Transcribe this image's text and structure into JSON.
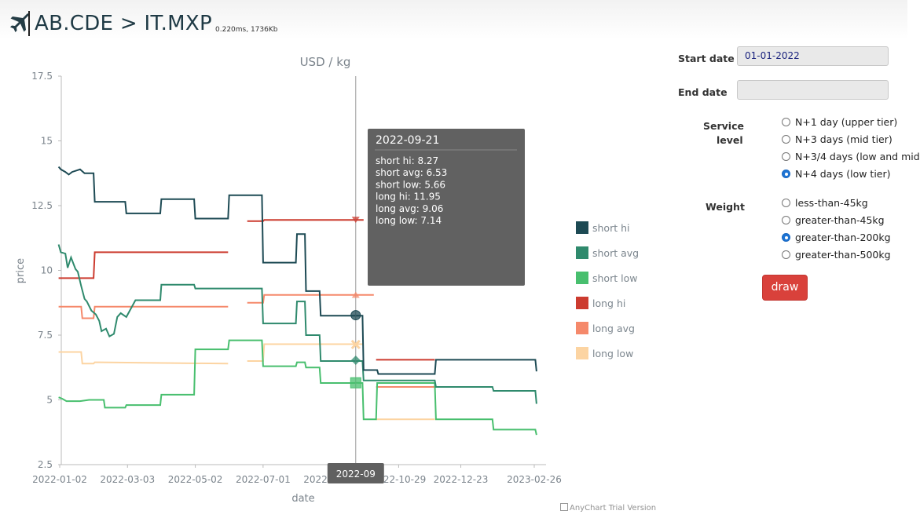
{
  "header": {
    "route": "AB.CDE > IT.MXP",
    "perf": "0.220ms, 1736Kb",
    "logo_icon": "airplane-icon"
  },
  "chart_data": {
    "type": "line",
    "title": "USD / kg",
    "xlabel": "date",
    "ylabel": "price",
    "ylim": [
      2.5,
      17.5
    ],
    "yticks": [
      "17.5",
      "15",
      "12.5",
      "10",
      "7.5",
      "5",
      "2.5"
    ],
    "xlim": [
      "2022-01-02",
      "2023-02-26"
    ],
    "xticks": [
      "2022-01-02",
      "2022-03-03",
      "2022-05-02",
      "2022-07-01",
      "2022-08-30",
      "2022-10-29",
      "2022-12-23",
      "2023-02-26"
    ],
    "grid": false,
    "legend": "right",
    "series": [
      {
        "name": "short hi",
        "color": "#1d4a54",
        "points": [
          [
            "2022-01-01",
            14.0
          ],
          [
            "2022-01-03",
            13.9
          ],
          [
            "2022-01-07",
            13.8
          ],
          [
            "2022-01-10",
            13.7
          ],
          [
            "2022-01-13",
            13.8
          ],
          [
            "2022-01-20",
            13.9
          ],
          [
            "2022-01-24",
            13.75
          ],
          [
            "2022-02-01",
            13.75
          ],
          [
            "2022-02-02",
            12.65
          ],
          [
            "2022-03-01",
            12.65
          ],
          [
            "2022-03-02",
            12.2
          ],
          [
            "2022-04-01",
            12.2
          ],
          [
            "2022-04-02",
            12.75
          ],
          [
            "2022-05-01",
            12.75
          ],
          [
            "2022-05-02",
            12.0
          ],
          [
            "2022-05-31",
            12.0
          ],
          [
            "2022-06-01",
            12.9
          ],
          [
            "2022-06-30",
            12.9
          ],
          [
            "2022-07-01",
            10.3
          ],
          [
            "2022-07-30",
            10.3
          ],
          [
            "2022-07-31",
            11.4
          ],
          [
            "2022-08-07",
            11.4
          ],
          [
            "2022-08-08",
            9.2
          ],
          [
            "2022-08-20",
            9.2
          ],
          [
            "2022-08-21",
            8.25
          ],
          [
            "2022-09-27",
            8.25
          ],
          [
            "2022-09-28",
            6.15
          ],
          [
            "2022-10-10",
            6.15
          ],
          [
            "2022-10-11",
            6.0
          ],
          [
            "2022-11-30",
            6.0
          ],
          [
            "2022-12-01",
            6.55
          ],
          [
            "2023-02-27",
            6.55
          ],
          [
            "2023-02-28",
            6.1
          ]
        ]
      },
      {
        "name": "short avg",
        "color": "#2f8a6d",
        "points": [
          [
            "2022-01-01",
            11.0
          ],
          [
            "2022-01-03",
            10.7
          ],
          [
            "2022-01-07",
            10.65
          ],
          [
            "2022-01-09",
            10.1
          ],
          [
            "2022-01-12",
            10.5
          ],
          [
            "2022-01-16",
            10.05
          ],
          [
            "2022-01-18",
            9.95
          ],
          [
            "2022-01-21",
            9.4
          ],
          [
            "2022-01-24",
            8.9
          ],
          [
            "2022-01-26",
            8.8
          ],
          [
            "2022-01-30",
            8.45
          ],
          [
            "2022-02-03",
            8.3
          ],
          [
            "2022-02-06",
            8.05
          ],
          [
            "2022-02-08",
            7.65
          ],
          [
            "2022-02-12",
            7.75
          ],
          [
            "2022-02-15",
            7.45
          ],
          [
            "2022-02-19",
            7.55
          ],
          [
            "2022-02-22",
            8.2
          ],
          [
            "2022-02-25",
            8.35
          ],
          [
            "2022-03-02",
            8.2
          ],
          [
            "2022-03-10",
            8.85
          ],
          [
            "2022-04-01",
            8.85
          ],
          [
            "2022-04-02",
            9.45
          ],
          [
            "2022-05-01",
            9.45
          ],
          [
            "2022-05-02",
            9.3
          ],
          [
            "2022-06-30",
            9.3
          ],
          [
            "2022-07-01",
            7.95
          ],
          [
            "2022-07-30",
            7.95
          ],
          [
            "2022-07-31",
            8.8
          ],
          [
            "2022-08-07",
            8.8
          ],
          [
            "2022-08-08",
            7.5
          ],
          [
            "2022-08-20",
            7.5
          ],
          [
            "2022-08-21",
            6.5
          ],
          [
            "2022-09-27",
            6.5
          ],
          [
            "2022-09-28",
            5.75
          ],
          [
            "2022-11-30",
            5.75
          ],
          [
            "2022-12-01",
            5.5
          ],
          [
            "2023-01-20",
            5.5
          ],
          [
            "2023-01-21",
            5.35
          ],
          [
            "2023-02-27",
            5.35
          ],
          [
            "2023-02-28",
            4.85
          ]
        ]
      },
      {
        "name": "short low",
        "color": "#48bf6e",
        "points": [
          [
            "2022-01-01",
            5.1
          ],
          [
            "2022-01-04",
            5.05
          ],
          [
            "2022-01-08",
            4.95
          ],
          [
            "2022-01-20",
            4.95
          ],
          [
            "2022-01-28",
            5.0
          ],
          [
            "2022-02-10",
            5.0
          ],
          [
            "2022-02-11",
            4.7
          ],
          [
            "2022-03-01",
            4.7
          ],
          [
            "2022-03-02",
            4.8
          ],
          [
            "2022-04-01",
            4.8
          ],
          [
            "2022-04-02",
            5.2
          ],
          [
            "2022-05-01",
            5.2
          ],
          [
            "2022-05-02",
            6.95
          ],
          [
            "2022-05-31",
            6.95
          ],
          [
            "2022-06-01",
            7.3
          ],
          [
            "2022-06-30",
            7.3
          ],
          [
            "2022-07-01",
            6.3
          ],
          [
            "2022-07-30",
            6.3
          ],
          [
            "2022-07-31",
            6.45
          ],
          [
            "2022-08-07",
            6.45
          ],
          [
            "2022-08-08",
            6.25
          ],
          [
            "2022-08-20",
            6.25
          ],
          [
            "2022-08-21",
            5.65
          ],
          [
            "2022-09-20",
            5.65
          ],
          [
            "2022-09-21",
            5.66
          ],
          [
            "2022-09-27",
            5.65
          ],
          [
            "2022-09-28",
            4.25
          ],
          [
            "2022-10-09",
            4.25
          ],
          [
            "2022-10-10",
            5.65
          ],
          [
            "2022-11-30",
            5.65
          ],
          [
            "2022-12-01",
            4.25
          ],
          [
            "2023-01-20",
            4.25
          ],
          [
            "2023-01-21",
            3.85
          ],
          [
            "2023-02-27",
            3.85
          ],
          [
            "2023-02-28",
            3.65
          ]
        ]
      },
      {
        "name": "long hi",
        "color": "#cc3b2f",
        "points": [
          [
            "2022-01-01",
            9.7
          ],
          [
            "2022-02-01",
            9.7
          ],
          [
            "2022-02-02",
            10.7
          ],
          [
            "2022-05-31",
            10.7
          ],
          null,
          [
            "2022-06-17",
            11.9
          ],
          [
            "2022-07-01",
            11.9
          ],
          [
            "2022-07-02",
            11.95
          ],
          [
            "2022-09-28",
            11.95
          ],
          null,
          [
            "2022-10-09",
            6.55
          ],
          [
            "2022-11-30",
            6.55
          ]
        ]
      },
      {
        "name": "long avg",
        "color": "#f5896b",
        "points": [
          [
            "2022-01-01",
            8.6
          ],
          [
            "2022-01-21",
            8.6
          ],
          [
            "2022-01-22",
            8.15
          ],
          [
            "2022-02-01",
            8.15
          ],
          [
            "2022-02-02",
            8.6
          ],
          [
            "2022-05-31",
            8.6
          ],
          null,
          [
            "2022-06-17",
            8.75
          ],
          [
            "2022-07-01",
            8.75
          ],
          [
            "2022-07-02",
            9.05
          ],
          [
            "2022-10-07",
            9.05
          ],
          null,
          [
            "2022-10-09",
            5.5
          ],
          [
            "2022-11-30",
            5.5
          ]
        ]
      },
      {
        "name": "long low",
        "color": "#fcd4a2",
        "points": [
          [
            "2022-01-01",
            6.85
          ],
          [
            "2022-01-21",
            6.85
          ],
          [
            "2022-01-22",
            6.4
          ],
          [
            "2022-02-01",
            6.4
          ],
          [
            "2022-02-02",
            6.45
          ],
          [
            "2022-05-31",
            6.4
          ],
          null,
          [
            "2022-06-17",
            6.5
          ],
          [
            "2022-07-01",
            6.5
          ],
          [
            "2022-07-02",
            7.15
          ],
          [
            "2022-09-27",
            7.15
          ],
          null,
          [
            "2022-10-09",
            4.25
          ],
          [
            "2022-11-30",
            4.25
          ]
        ]
      }
    ],
    "crosshair": {
      "date": "2022-09-21",
      "x_label": "2022-09",
      "markers": [
        {
          "series": "short hi",
          "value": 8.27,
          "shape": "circle"
        },
        {
          "series": "short avg",
          "value": 6.53,
          "shape": "diamond"
        },
        {
          "series": "short low",
          "value": 5.66,
          "shape": "square"
        },
        {
          "series": "long hi",
          "value": 11.95,
          "shape": "triangle-down"
        },
        {
          "series": "long avg",
          "value": 9.06,
          "shape": "triangle-up"
        },
        {
          "series": "long low",
          "value": 7.14,
          "shape": "cross"
        }
      ]
    },
    "tooltip": {
      "title": "2022-09-21",
      "lines": [
        "short hi: 8.27",
        "short avg: 6.53",
        "short low: 5.66",
        "long hi: 11.95",
        "long avg: 9.06",
        "long low: 7.14"
      ]
    },
    "credits": "AnyChart Trial Version"
  },
  "form": {
    "start_date": {
      "label": "Start date",
      "value": "01-01-2022"
    },
    "end_date": {
      "label": "End date",
      "value": ""
    },
    "service_level": {
      "label_line1": "Service",
      "label_line2": "level",
      "options": [
        {
          "label": "N+1 day (upper tier)",
          "checked": false
        },
        {
          "label": "N+3 days (mid tier)",
          "checked": false
        },
        {
          "label": "N+3/4 days (low and mid",
          "checked": false
        },
        {
          "label": "N+4 days (low tier)",
          "checked": true
        }
      ]
    },
    "weight": {
      "label": "Weight",
      "options": [
        {
          "label": "less-than-45kg",
          "checked": false
        },
        {
          "label": "greater-than-45kg",
          "checked": false
        },
        {
          "label": "greater-than-200kg",
          "checked": true
        },
        {
          "label": "greater-than-500kg",
          "checked": false
        }
      ]
    },
    "draw_label": "draw",
    "accent": "#d9413b"
  }
}
